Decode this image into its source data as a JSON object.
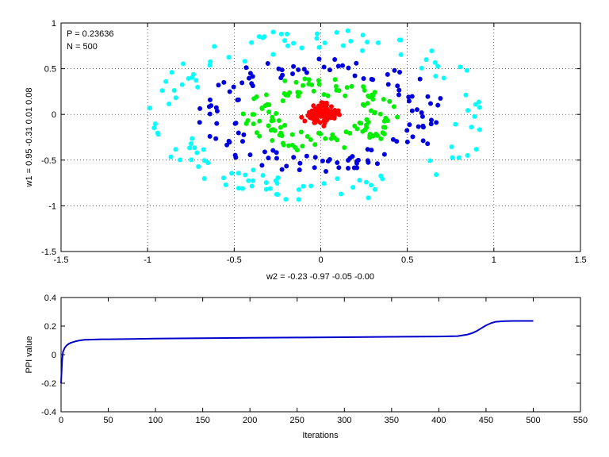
{
  "chart_data": [
    {
      "type": "scatter",
      "title": "",
      "xlabel": "w2 = -0.23  -0.97  -0.05  -0.00",
      "ylabel": "w1 = 0.95  -0.31  0.01  0.08",
      "xlim": [
        -1.5,
        1.5
      ],
      "ylim": [
        -1.5,
        1
      ],
      "xticks": [
        -1.5,
        -1,
        -0.5,
        0,
        0.5,
        1,
        1.5
      ],
      "yticks": [
        -1.5,
        -1,
        -0.5,
        0,
        0.5,
        1
      ],
      "grid": true,
      "annotations": [
        "P = 0.23636",
        "N = 500"
      ],
      "colors": {
        "red": "#ff0000",
        "green": "#00ee00",
        "blue": "#0000dd",
        "cyan": "#00ffff"
      },
      "series": [
        {
          "color": "#ff0000",
          "count": 125,
          "distribution": "ring",
          "radius_x": [
            0.0,
            0.1
          ],
          "radius_y": [
            0.0,
            0.12
          ]
        },
        {
          "color": "#00ee00",
          "count": 125,
          "distribution": "ring",
          "radius_x": [
            0.25,
            0.45
          ],
          "radius_y": [
            0.2,
            0.42
          ]
        },
        {
          "color": "#0000dd",
          "count": 125,
          "distribution": "ring",
          "radius_x": [
            0.5,
            0.72
          ],
          "radius_y": [
            0.45,
            0.65
          ]
        },
        {
          "color": "#00ffff",
          "count": 125,
          "distribution": "ring",
          "radius_x": [
            0.78,
            1.0
          ],
          "radius_y": [
            0.7,
            0.95
          ]
        }
      ]
    },
    {
      "type": "line",
      "title": "",
      "xlabel": "Iterations",
      "ylabel": "PPI value",
      "xlim": [
        0,
        550
      ],
      "ylim": [
        -0.4,
        0.4
      ],
      "xticks": [
        0,
        50,
        100,
        150,
        200,
        250,
        300,
        350,
        400,
        450,
        500,
        550
      ],
      "yticks": [
        -0.4,
        -0.2,
        0,
        0.2,
        0.4
      ],
      "grid": false,
      "line_color": "#0000cc",
      "x": [
        0,
        1,
        2,
        4,
        6,
        8,
        10,
        15,
        20,
        25,
        30,
        40,
        50,
        75,
        100,
        150,
        200,
        250,
        300,
        350,
        400,
        420,
        430,
        435,
        440,
        445,
        450,
        455,
        460,
        465,
        470,
        480,
        490,
        500
      ],
      "y": [
        -0.2,
        -0.05,
        0.02,
        0.05,
        0.065,
        0.075,
        0.082,
        0.093,
        0.1,
        0.104,
        0.105,
        0.107,
        0.108,
        0.11,
        0.112,
        0.115,
        0.118,
        0.12,
        0.122,
        0.125,
        0.127,
        0.13,
        0.14,
        0.15,
        0.165,
        0.185,
        0.205,
        0.22,
        0.23,
        0.233,
        0.235,
        0.236,
        0.236,
        0.236
      ]
    }
  ]
}
